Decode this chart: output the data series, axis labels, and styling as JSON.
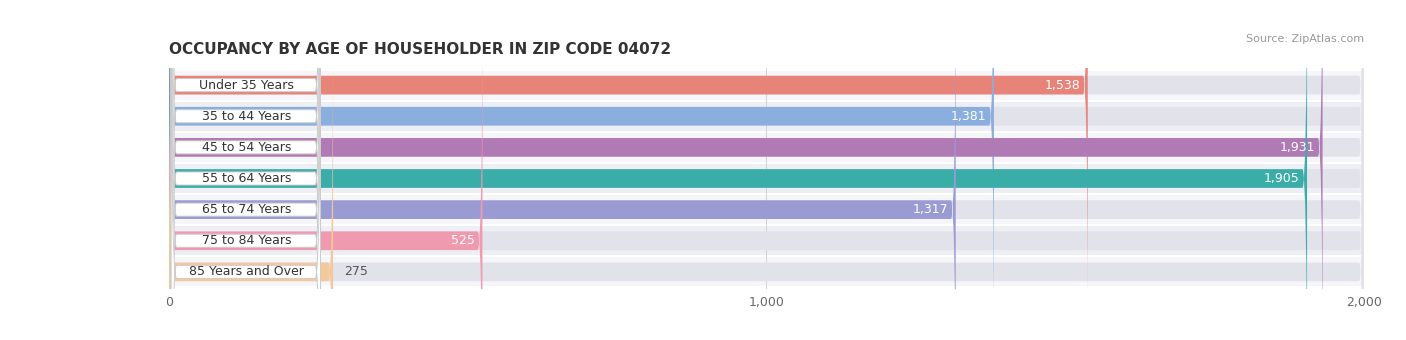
{
  "title": "OCCUPANCY BY AGE OF HOUSEHOLDER IN ZIP CODE 04072",
  "source": "Source: ZipAtlas.com",
  "categories": [
    "Under 35 Years",
    "35 to 44 Years",
    "45 to 54 Years",
    "55 to 64 Years",
    "65 to 74 Years",
    "75 to 84 Years",
    "85 Years and Over"
  ],
  "values": [
    1538,
    1381,
    1931,
    1905,
    1317,
    525,
    275
  ],
  "bar_colors": [
    "#E8837A",
    "#8AAEDD",
    "#B07AB5",
    "#3AADA8",
    "#9B9BD4",
    "#F09AAF",
    "#F5C89A"
  ],
  "xlim": [
    0,
    2000
  ],
  "xticks": [
    0,
    1000,
    2000
  ],
  "value_threshold": 400,
  "title_fontsize": 11,
  "source_fontsize": 8,
  "bar_label_fontsize": 9,
  "value_fontsize": 9,
  "bar_height": 0.6,
  "background_color": "#FFFFFF",
  "row_bg_even": "#F5F5FA",
  "row_bg_odd": "#EEEEF5",
  "bar_bg_color": "#E2E2EA"
}
